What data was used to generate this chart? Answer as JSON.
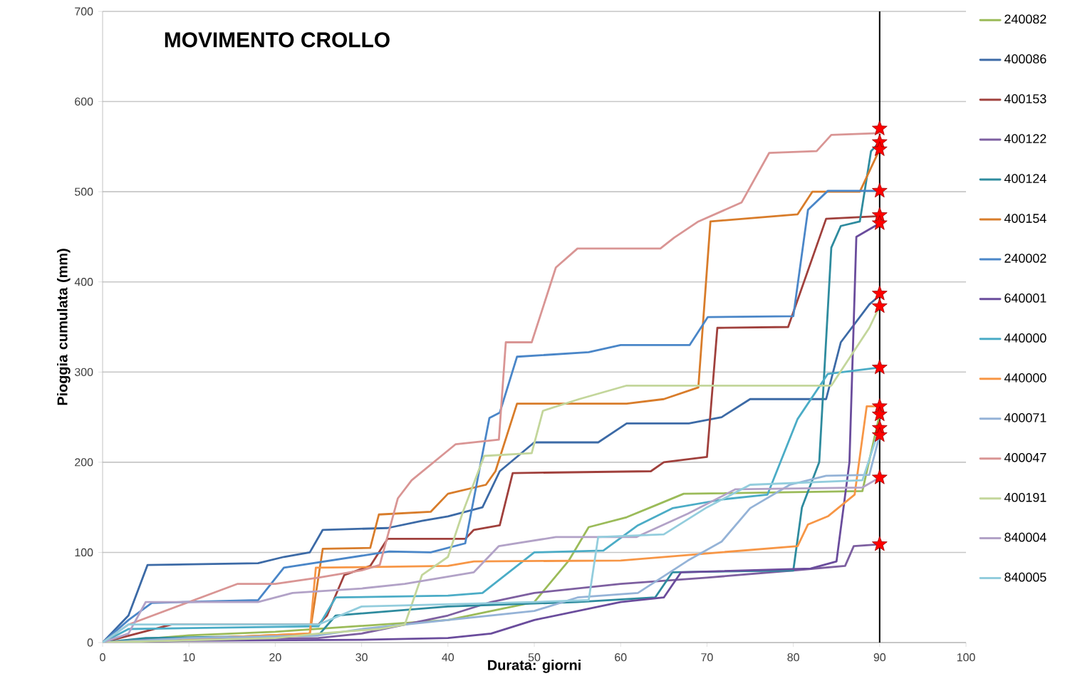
{
  "chart_data": {
    "type": "line",
    "title": "MOVIMENTO CROLLO",
    "xlabel": "Durata: giorni",
    "ylabel": "Pioggia cumulata (mm)",
    "xlim": [
      0,
      100
    ],
    "xticks": [
      0,
      10,
      20,
      30,
      40,
      50,
      60,
      70,
      80,
      90,
      100
    ],
    "ylim": [
      0,
      700
    ],
    "yticks": [
      0,
      100,
      200,
      300,
      400,
      500,
      600,
      700
    ],
    "grid": "y",
    "legend": "right",
    "ref_lines": [
      {
        "axis": "x",
        "value": 90,
        "color": "#000000"
      }
    ],
    "series": [
      {
        "name": "240082",
        "color": "#9bbb59",
        "x": [
          0,
          10,
          20,
          40,
          50,
          54,
          56.3,
          60.7,
          64,
          67.3,
          88,
          90
        ],
        "values": [
          0,
          8,
          12,
          25,
          45,
          91,
          128,
          139,
          152,
          165,
          168,
          253
        ]
      },
      {
        "name": "400086",
        "color": "#3c6aa6",
        "x": [
          0,
          3,
          5.2,
          18,
          21,
          24,
          25.5,
          33,
          37,
          40,
          44,
          46,
          50,
          57.4,
          60.7,
          67.9,
          71.7,
          75,
          83.8,
          85.5,
          88.8,
          90
        ],
        "values": [
          0,
          30,
          86,
          88,
          95,
          100,
          125,
          127,
          135,
          140,
          150,
          190,
          222,
          222,
          243,
          243,
          250,
          270,
          270,
          333,
          375,
          385
        ]
      },
      {
        "name": "400153",
        "color": "#a0403c",
        "x": [
          0,
          8,
          25,
          26,
          28,
          31,
          33,
          42,
          43,
          46,
          47.5,
          63.5,
          65,
          70,
          71.2,
          79.4,
          83.8,
          90
        ],
        "values": [
          0,
          20,
          20,
          30,
          75,
          85,
          115,
          115,
          125,
          130,
          188,
          190,
          200,
          206,
          349,
          350,
          470,
          473
        ]
      },
      {
        "name": "400122",
        "color": "#7d5fa0",
        "x": [
          0,
          5,
          25,
          30,
          40,
          45,
          50,
          60,
          70,
          80,
          86,
          87,
          90
        ],
        "values": [
          0,
          3,
          5,
          10,
          30,
          45,
          55,
          65,
          72,
          80,
          85,
          107,
          109
        ]
      },
      {
        "name": "400124",
        "color": "#2e8b9e",
        "x": [
          0,
          5,
          25,
          27,
          40,
          55,
          64,
          66,
          80,
          81,
          83,
          84.4,
          85.5,
          87.7,
          89,
          90
        ],
        "values": [
          0,
          5,
          8,
          30,
          40,
          45,
          50,
          78,
          80,
          150,
          200,
          438,
          462,
          467,
          545,
          555
        ]
      },
      {
        "name": "400154",
        "color": "#d87c2a",
        "x": [
          0,
          24,
          25.5,
          31,
          32,
          38,
          40,
          44.4,
          45.5,
          48,
          60.7,
          65,
          69,
          70.4,
          80.5,
          82.2,
          87.7,
          90
        ],
        "values": [
          0,
          10,
          104,
          105,
          142,
          145,
          165,
          175,
          190,
          265,
          265,
          270,
          283,
          467,
          475,
          500,
          500,
          547
        ]
      },
      {
        "name": "240002",
        "color": "#4a86c8",
        "x": [
          0,
          3,
          5.7,
          18,
          21,
          33.2,
          38,
          42,
          44.8,
          46,
          48,
          56.3,
          60,
          68,
          70.1,
          80,
          81.7,
          84,
          90
        ],
        "values": [
          0,
          25,
          44,
          47,
          83,
          101,
          100,
          110,
          249,
          255,
          317,
          322,
          330,
          330,
          361,
          362,
          480,
          501,
          501
        ]
      },
      {
        "name": "640001",
        "color": "#6a4c9c",
        "x": [
          0,
          10,
          30,
          40,
          45,
          50,
          60,
          65,
          67,
          82,
          85,
          86.5,
          87.3,
          90
        ],
        "values": [
          0,
          2,
          3,
          5,
          10,
          25,
          45,
          50,
          78,
          82,
          90,
          200,
          450,
          465
        ]
      },
      {
        "name": "440000",
        "color": "#4bacc6",
        "x": [
          0,
          3,
          25,
          27,
          40,
          44,
          46,
          48,
          50,
          58,
          62,
          66,
          72,
          77,
          80.5,
          84,
          90
        ],
        "values": [
          0,
          15,
          18,
          50,
          52,
          55,
          70,
          85,
          100,
          102,
          130,
          149,
          159,
          164,
          248,
          298,
          305
        ]
      },
      {
        "name": "440000",
        "color": "#f79646",
        "x": [
          0,
          24,
          24.7,
          40,
          43,
          60,
          80.5,
          81.7,
          84,
          87.1,
          88.5,
          90
        ],
        "values": [
          0,
          10,
          83,
          85,
          90,
          91,
          107,
          131,
          140,
          164,
          262,
          262
        ]
      },
      {
        "name": "400071",
        "color": "#95b3d7",
        "x": [
          0,
          10,
          25,
          30,
          40,
          50,
          55,
          62,
          67.8,
          71.7,
          75,
          79.6,
          83.8,
          88.8,
          90
        ],
        "values": [
          0,
          5,
          8,
          15,
          25,
          35,
          50,
          55,
          91,
          112,
          149,
          175,
          185,
          186,
          230
        ]
      },
      {
        "name": "400047",
        "color": "#d99594",
        "x": [
          0,
          3,
          15.6,
          20,
          25,
          30,
          32.1,
          34.2,
          35.8,
          40.9,
          45.9,
          46.7,
          49.7,
          52.5,
          55,
          64.6,
          66.2,
          69,
          74,
          77.2,
          82.7,
          84.4,
          90
        ],
        "values": [
          0,
          20,
          65,
          65,
          72,
          80,
          86,
          160,
          180,
          220,
          225,
          333,
          333,
          416,
          437,
          437,
          449,
          467,
          488,
          543,
          545,
          563,
          565
        ]
      },
      {
        "name": "400191",
        "color": "#c3d69b",
        "x": [
          0,
          20,
          25,
          32,
          35,
          37,
          40,
          41.7,
          44.2,
          49.7,
          51,
          55.2,
          60.7,
          84.4,
          88.8,
          90
        ],
        "values": [
          0,
          5,
          10,
          15,
          20,
          75,
          95,
          144,
          207,
          210,
          257,
          270,
          285,
          285,
          349,
          373
        ]
      },
      {
        "name": "840004",
        "color": "#b2a2c7",
        "x": [
          0,
          3,
          5,
          18,
          22,
          30,
          35,
          43,
          45.9,
          52.5,
          61.8,
          67.8,
          73.3,
          88,
          90
        ],
        "values": [
          0,
          10,
          45,
          45,
          55,
          60,
          65,
          78,
          107,
          117,
          117,
          143,
          170,
          172,
          183
        ]
      },
      {
        "name": "840005",
        "color": "#93cddd",
        "x": [
          0,
          3,
          25,
          30,
          50,
          56.3,
          57.4,
          65,
          70,
          75,
          88,
          90
        ],
        "values": [
          0,
          20,
          20,
          40,
          45,
          47,
          117,
          120,
          150,
          175,
          180,
          238
        ]
      },
      {
        "type": "scatter",
        "marker": "star",
        "color": "#ff0000",
        "x": [
          90,
          90,
          90,
          90,
          90,
          90,
          90,
          90,
          90,
          90,
          90,
          90,
          90,
          90,
          90
        ],
        "values": [
          570,
          555,
          547,
          501,
          474,
          465,
          387,
          373,
          305,
          262,
          253,
          238,
          230,
          183,
          109
        ]
      }
    ]
  }
}
